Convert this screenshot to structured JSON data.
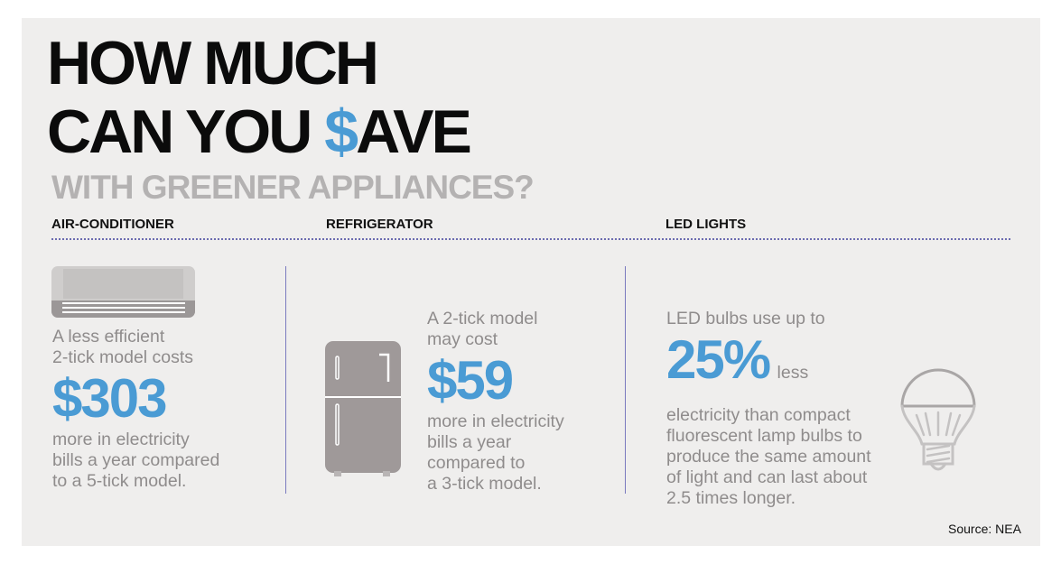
{
  "title": {
    "line1": "HOW MUCH",
    "line2_prefix": "CAN YOU ",
    "line2_dollar": "$",
    "line2_suffix": "AVE",
    "subtitle": "WITH GREENER APPLIANCES?"
  },
  "colors": {
    "accent": "#4a9bd4",
    "body_text": "#8f8c8c",
    "background": "#efeeed",
    "divider": "#7a7abf"
  },
  "sections": [
    {
      "heading": "AIR-CONDITIONER",
      "icon": "air-conditioner-icon",
      "intro": [
        "A less efficient",
        "2-tick model costs"
      ],
      "value": "$303",
      "outro": [
        "more in electricity",
        "bills a year compared",
        "to a 5-tick model."
      ]
    },
    {
      "heading": "REFRIGERATOR",
      "icon": "refrigerator-icon",
      "intro": [
        "A 2-tick model",
        "may cost"
      ],
      "value": "$59",
      "outro": [
        "more in electricity",
        "bills a year",
        "compared to",
        "a 3-tick model."
      ]
    },
    {
      "heading": "LED LIGHTS",
      "icon": "light-bulb-icon",
      "intro": [
        "LED bulbs use up to"
      ],
      "value": "25%",
      "value_suffix": "less",
      "outro": [
        "electricity than compact",
        "fluorescent lamp bulbs to",
        "produce the same amount",
        "of light and can last about",
        "2.5 times longer."
      ]
    }
  ],
  "source": "Source: NEA"
}
